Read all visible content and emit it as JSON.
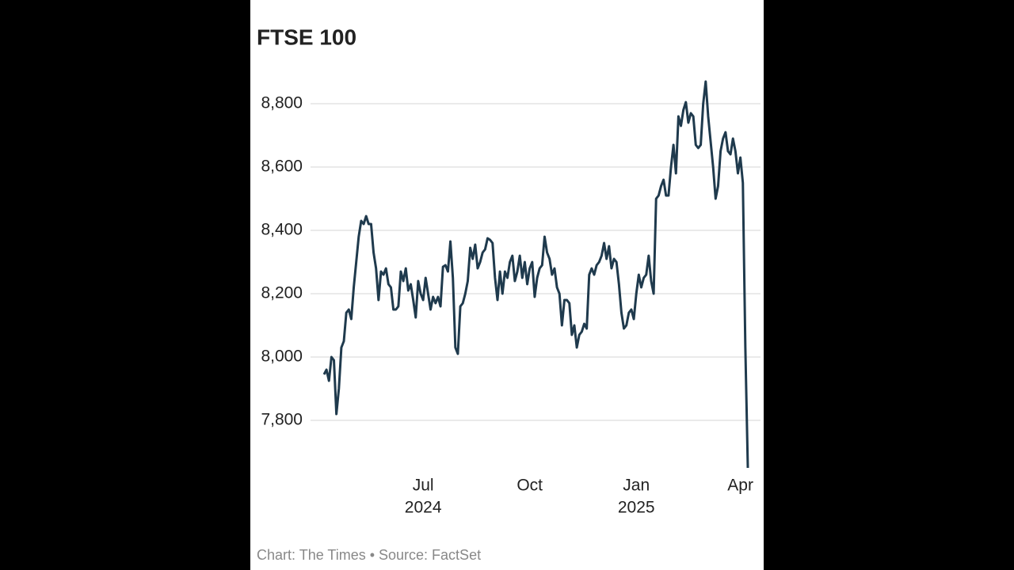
{
  "chart_data": {
    "type": "line",
    "title": "FTSE 100",
    "footer": "Chart: The Times • Source: FactSet",
    "color": "#1f3a4d",
    "grid": true,
    "ylim": [
      7625,
      8900
    ],
    "yticks": [
      {
        "value": 7800,
        "label": "7,800"
      },
      {
        "value": 8000,
        "label": "8,000"
      },
      {
        "value": 8200,
        "label": "8,200"
      },
      {
        "value": 8400,
        "label": "8,400"
      },
      {
        "value": 8600,
        "label": "8,600"
      },
      {
        "value": 8800,
        "label": "8,800"
      }
    ],
    "categories": [
      null,
      null,
      null,
      null,
      null,
      null,
      null,
      null,
      null,
      null,
      null,
      null,
      null,
      null,
      null,
      null,
      null,
      null,
      null,
      null,
      null,
      null,
      null,
      null,
      null,
      null,
      null,
      null,
      null,
      null,
      null,
      null,
      null,
      null,
      null,
      null,
      null,
      null,
      null,
      null,
      [
        "Jul",
        "2024"
      ],
      null,
      null,
      null,
      null,
      null,
      null,
      null,
      null,
      null,
      null,
      null,
      null,
      null,
      null,
      null,
      null,
      null,
      null,
      null,
      null,
      null,
      null,
      null,
      null,
      null,
      null,
      null,
      null,
      null,
      null,
      null,
      null,
      null,
      null,
      null,
      null,
      null,
      null,
      null,
      null,
      null,
      null,
      [
        "Oct"
      ],
      null,
      null,
      null,
      null,
      null,
      null,
      null,
      null,
      null,
      null,
      null,
      null,
      null,
      null,
      null,
      null,
      null,
      null,
      null,
      null,
      null,
      null,
      null,
      null,
      null,
      null,
      null,
      null,
      null,
      null,
      null,
      null,
      null,
      null,
      null,
      null,
      null,
      null,
      null,
      null,
      null,
      null,
      [
        "Jan",
        "2025"
      ],
      null,
      null,
      null,
      null,
      null,
      null,
      null,
      null,
      null,
      null,
      null,
      null,
      null,
      null,
      null,
      null,
      null,
      null,
      null,
      null,
      null,
      null,
      null,
      null,
      null,
      null,
      null,
      null,
      null,
      null,
      null,
      null,
      null,
      null,
      null,
      null,
      null,
      null,
      null,
      null,
      null,
      [
        "Apr"
      ],
      null,
      null,
      null
    ],
    "values": [
      7945,
      7960,
      7925,
      8000,
      7990,
      7820,
      7900,
      8030,
      8050,
      8140,
      8150,
      8120,
      8220,
      8300,
      8380,
      8430,
      8420,
      8445,
      8420,
      8420,
      8330,
      8280,
      8180,
      8270,
      8260,
      8280,
      8230,
      8220,
      8150,
      8150,
      8160,
      8270,
      8240,
      8280,
      8210,
      8230,
      8180,
      8125,
      8240,
      8200,
      8180,
      8250,
      8200,
      8150,
      8190,
      8170,
      8190,
      8160,
      8285,
      8290,
      8270,
      8365,
      8250,
      8030,
      8010,
      8160,
      8170,
      8200,
      8240,
      8345,
      8310,
      8355,
      8280,
      8300,
      8330,
      8340,
      8375,
      8370,
      8360,
      8250,
      8180,
      8270,
      8200,
      8270,
      8250,
      8300,
      8320,
      8240,
      8270,
      8320,
      8250,
      8300,
      8230,
      8280,
      8300,
      8190,
      8250,
      8280,
      8290,
      8380,
      8330,
      8310,
      8260,
      8280,
      8220,
      8200,
      8100,
      8180,
      8180,
      8170,
      8070,
      8100,
      8030,
      8070,
      8080,
      8105,
      8090,
      8260,
      8280,
      8260,
      8290,
      8300,
      8320,
      8360,
      8310,
      8350,
      8280,
      8310,
      8300,
      8230,
      8140,
      8090,
      8100,
      8140,
      8150,
      8120,
      8200,
      8260,
      8220,
      8250,
      8260,
      8320,
      8240,
      8200,
      8500,
      8510,
      8540,
      8560,
      8510,
      8510,
      8600,
      8670,
      8580,
      8760,
      8730,
      8780,
      8805,
      8740,
      8770,
      8760,
      8670,
      8660,
      8670,
      8800,
      8870,
      8760,
      8680,
      8600,
      8500,
      8540,
      8650,
      8690,
      8710,
      8650,
      8640,
      8690,
      8650,
      8580,
      8630,
      8550,
      8030,
      7650
    ]
  }
}
